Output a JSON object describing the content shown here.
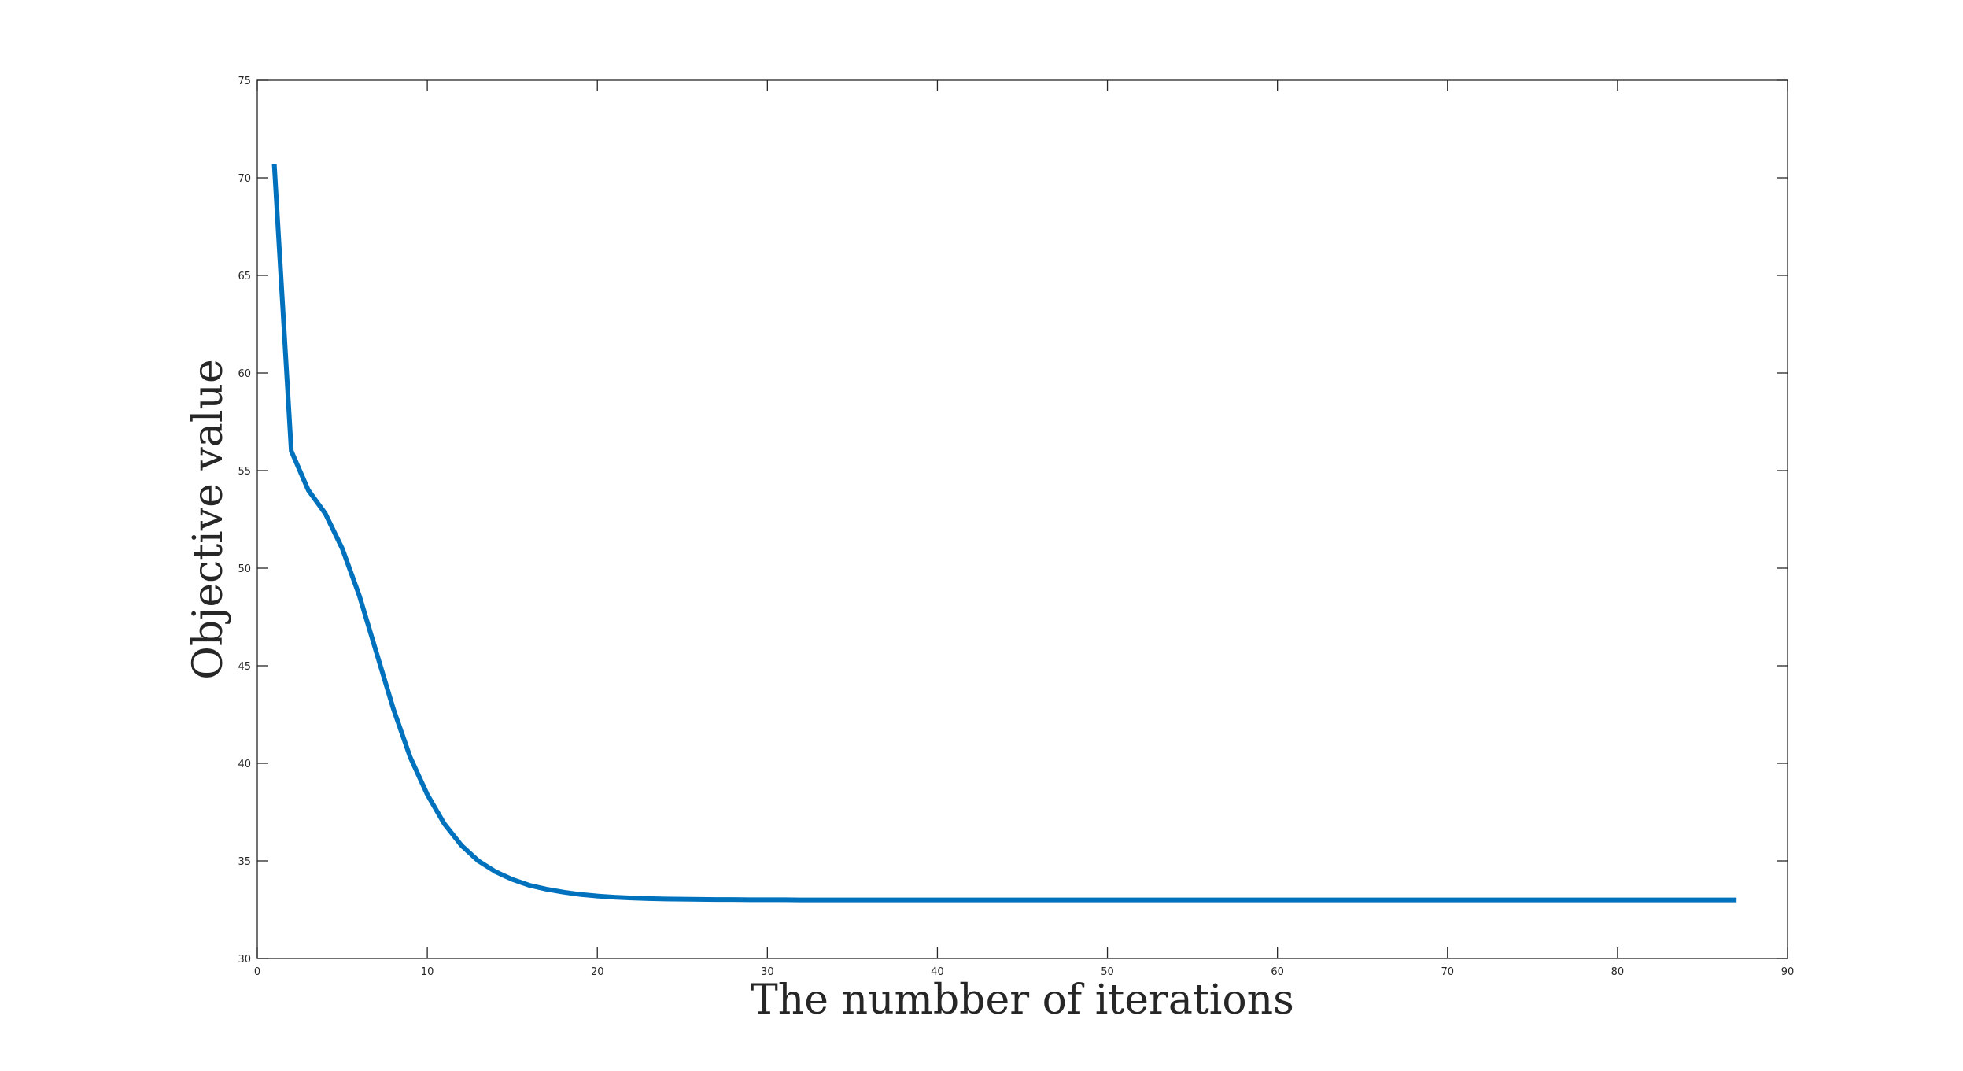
{
  "chart_data": {
    "type": "line",
    "title": "",
    "xlabel": "The numbber of iterations",
    "ylabel": "Objective value",
    "xlim": [
      0,
      90
    ],
    "ylim": [
      30,
      75
    ],
    "xticks": [
      "0",
      "10",
      "20",
      "30",
      "40",
      "50",
      "60",
      "70",
      "80",
      "90"
    ],
    "yticks": [
      "30",
      "35",
      "40",
      "45",
      "50",
      "55",
      "60",
      "65",
      "70",
      "75"
    ],
    "grid": false,
    "legend": "none",
    "color": "#0072bd",
    "series": [
      {
        "x": [
          1,
          2,
          3,
          4,
          5,
          6,
          7,
          8,
          9,
          10,
          11,
          12,
          13,
          14,
          15,
          16,
          17,
          18,
          19,
          20,
          21,
          22,
          23,
          24,
          25,
          26,
          27,
          28,
          29,
          30,
          31,
          32,
          33,
          34,
          35,
          36,
          37,
          38,
          39,
          40,
          41,
          42,
          43,
          44,
          45,
          46,
          47,
          48,
          49,
          50,
          51,
          52,
          53,
          54,
          55,
          56,
          57,
          58,
          59,
          60,
          61,
          62,
          63,
          64,
          65,
          66,
          67,
          68,
          69,
          70,
          71,
          72,
          73,
          74,
          75,
          76,
          77,
          78,
          79,
          80,
          81,
          82,
          83,
          84,
          85,
          86,
          87
        ],
        "values": [
          70.7,
          56.0,
          54.0,
          52.8,
          51.0,
          48.6,
          45.7,
          42.8,
          40.3,
          38.4,
          36.9,
          35.8,
          35.0,
          34.45,
          34.05,
          33.75,
          33.55,
          33.4,
          33.28,
          33.2,
          33.14,
          33.1,
          33.07,
          33.05,
          33.04,
          33.03,
          33.02,
          33.02,
          33.01,
          33.01,
          33.01,
          33.0,
          33.0,
          33.0,
          33.0,
          33.0,
          33.0,
          33.0,
          33.0,
          33.0,
          33.0,
          33.0,
          33.0,
          33.0,
          33.0,
          33.0,
          33.0,
          33.0,
          33.0,
          33.0,
          33.0,
          33.0,
          33.0,
          33.0,
          33.0,
          33.0,
          33.0,
          33.0,
          33.0,
          33.0,
          33.0,
          33.0,
          33.0,
          33.0,
          33.0,
          33.0,
          33.0,
          33.0,
          33.0,
          33.0,
          33.0,
          33.0,
          33.0,
          33.0,
          33.0,
          33.0,
          33.0,
          33.0,
          33.0,
          33.0,
          33.0,
          33.0,
          33.0,
          33.0,
          33.0,
          33.0,
          33.0
        ]
      }
    ]
  }
}
